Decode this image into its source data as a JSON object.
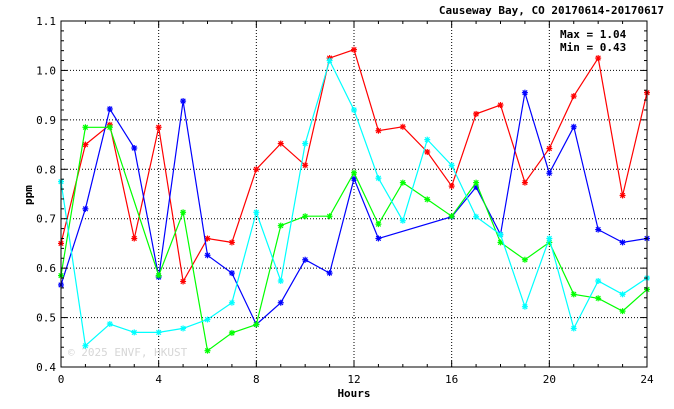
{
  "chart_data": {
    "type": "line",
    "title": "Causeway Bay, CO 20170614-20170617",
    "xlabel": "Hours",
    "ylabel": "ppm",
    "xlim": [
      0,
      24
    ],
    "ylim": [
      0.4,
      1.1
    ],
    "xticks": [
      0,
      4,
      8,
      12,
      16,
      20,
      24
    ],
    "yticks": [
      0.4,
      0.5,
      0.6,
      0.7,
      0.8,
      0.9,
      1.0,
      1.1
    ],
    "ytick_labels": [
      "0.4",
      "0.5",
      "0.6",
      "0.7",
      "0.8",
      "0.9",
      "1.0",
      "1.1"
    ],
    "grid": true,
    "stats": {
      "max": "Max = 1.04",
      "min": "Min = 0.43"
    },
    "watermark": "© 2025 ENVF, HKUST",
    "series": [
      {
        "color": "#ff0000",
        "x": [
          0,
          1,
          2,
          3,
          4,
          5,
          6,
          7,
          8,
          9,
          10,
          11,
          12,
          13,
          14,
          15,
          16,
          17,
          18,
          19,
          20,
          21,
          22,
          23,
          24
        ],
        "y": [
          0.65,
          0.85,
          0.89,
          0.66,
          0.885,
          0.573,
          0.66,
          0.652,
          0.8,
          0.852,
          0.808,
          1.025,
          1.042,
          0.878,
          0.886,
          0.835,
          0.766,
          0.912,
          0.93,
          0.773,
          0.842,
          0.948,
          1.025,
          0.747,
          0.955
        ]
      },
      {
        "color": "#0000ff",
        "x": [
          0,
          1,
          2,
          3,
          4,
          5,
          6,
          7,
          8,
          9,
          10,
          11,
          12,
          13,
          16,
          17,
          18,
          19,
          20,
          21,
          22,
          23,
          24
        ],
        "y": [
          0.566,
          0.72,
          0.922,
          0.843,
          0.582,
          0.938,
          0.626,
          0.59,
          0.486,
          0.53,
          0.617,
          0.59,
          0.781,
          0.66,
          0.704,
          0.764,
          0.668,
          0.955,
          0.792,
          0.886,
          0.678,
          0.652,
          0.66
        ]
      },
      {
        "color": "#00ff00",
        "x": [
          0,
          1,
          2,
          4,
          5,
          6,
          7,
          8,
          9,
          10,
          11,
          12,
          13,
          14,
          15,
          16,
          17,
          18,
          19,
          20,
          21,
          22,
          23,
          24
        ],
        "y": [
          0.585,
          0.885,
          0.885,
          0.585,
          0.713,
          0.433,
          0.469,
          0.486,
          0.686,
          0.705,
          0.705,
          0.793,
          0.689,
          0.773,
          0.739,
          0.705,
          0.773,
          0.652,
          0.617,
          0.652,
          0.547,
          0.539,
          0.513,
          0.557
        ]
      },
      {
        "color": "#00ffff",
        "x": [
          0,
          1,
          2,
          3,
          4,
          5,
          6,
          7,
          8,
          9,
          10,
          11,
          12,
          13,
          14,
          15,
          16,
          17,
          18,
          19,
          20,
          21,
          22,
          23,
          24
        ],
        "y": [
          0.775,
          0.443,
          0.487,
          0.47,
          0.47,
          0.478,
          0.496,
          0.53,
          0.713,
          0.574,
          0.852,
          1.02,
          0.92,
          0.782,
          0.696,
          0.86,
          0.808,
          0.704,
          0.668,
          0.522,
          0.66,
          0.478,
          0.574,
          0.547,
          0.58
        ]
      }
    ]
  }
}
